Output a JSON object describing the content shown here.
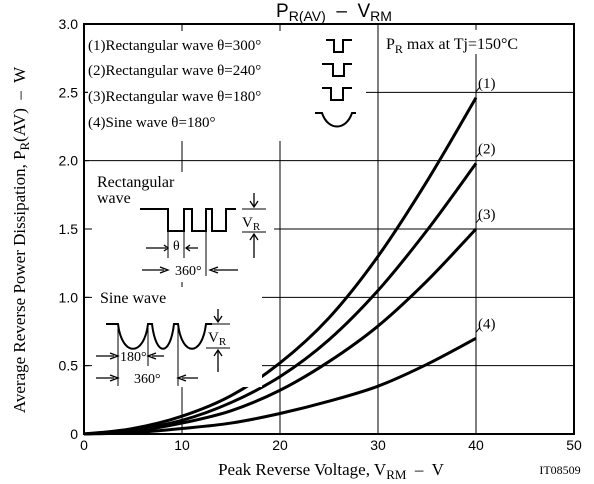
{
  "chart_data": {
    "type": "line",
    "title": {
      "main": "P",
      "sub": "R(AV)",
      "sep": "  –  ",
      "main2": "V",
      "sub2": "RM"
    },
    "xlabel": {
      "pre": "Peak Reverse Voltage, V",
      "sub": "RM",
      "post": "  –  V"
    },
    "ylabel": {
      "pre": "Average Reverse Power Dissipation, P",
      "sub": "R",
      "post": "(AV)  –  W"
    },
    "xlim": [
      0,
      50
    ],
    "ylim": [
      0,
      3.0
    ],
    "x_ticks": [
      "0",
      "10",
      "20",
      "30",
      "40",
      "50"
    ],
    "y_ticks": [
      "0",
      "0.5",
      "1.0",
      "1.5",
      "2.0",
      "2.5",
      "3.0"
    ],
    "grid": true,
    "condition": {
      "pre": "P",
      "sub": "R",
      "post": " max at Tj=150°C"
    },
    "legend": [
      "(1)Rectangular wave θ=300°",
      "(2)Rectangular wave θ=240°",
      "(3)Rectangular wave θ=180°",
      "(4)Sine wave θ=180°"
    ],
    "series": [
      {
        "name": "(1)",
        "x": [
          0,
          5,
          10,
          15,
          20,
          25,
          30,
          35,
          40
        ],
        "y": [
          0,
          0.04,
          0.13,
          0.28,
          0.52,
          0.85,
          1.3,
          1.85,
          2.46
        ]
      },
      {
        "name": "(2)",
        "x": [
          0,
          5,
          10,
          15,
          20,
          25,
          30,
          35,
          40
        ],
        "y": [
          0,
          0.03,
          0.1,
          0.23,
          0.42,
          0.69,
          1.05,
          1.49,
          1.98
        ]
      },
      {
        "name": "(3)",
        "x": [
          0,
          5,
          10,
          15,
          20,
          25,
          30,
          35,
          40
        ],
        "y": [
          0,
          0.02,
          0.08,
          0.17,
          0.32,
          0.53,
          0.79,
          1.12,
          1.5
        ]
      },
      {
        "name": "(4)",
        "x": [
          0,
          5,
          10,
          15,
          20,
          25,
          30,
          35,
          40
        ],
        "y": [
          0,
          0.01,
          0.04,
          0.08,
          0.15,
          0.24,
          0.35,
          0.51,
          0.7
        ]
      }
    ],
    "inset_rect": {
      "title_line1": "Rectangular",
      "title_line2": "wave",
      "theta": "θ",
      "period": "360°",
      "vr_pre": "V",
      "vr_sub": "R"
    },
    "inset_sine": {
      "title": "Sine wave",
      "half": "180°",
      "period": "360°",
      "vr_pre": "V",
      "vr_sub": "R"
    },
    "doc_code": "IT08509"
  }
}
